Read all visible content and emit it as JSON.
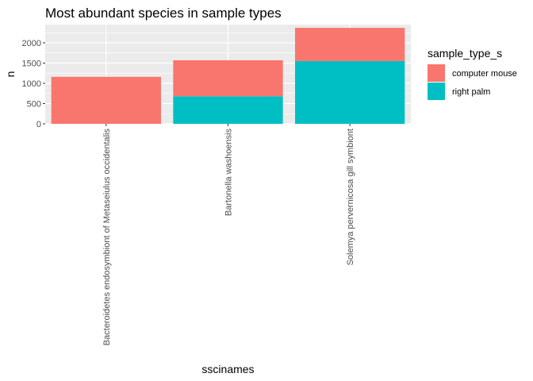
{
  "chart_data": {
    "type": "bar",
    "stacked": true,
    "title": "Most abundant species in sample types",
    "xlabel": "sscinames",
    "ylabel": "n",
    "categories": [
      "Bacteroidetes endosymbiont of Metaseiulus occidentalis",
      "Bartonella washoensis",
      "Solemya pervernicosa gill symbiont"
    ],
    "series": [
      {
        "name": "computer mouse",
        "color": "#F8766D",
        "values": [
          1160,
          890,
          820
        ]
      },
      {
        "name": "right palm",
        "color": "#00BFC4",
        "values": [
          0,
          680,
          1550
        ]
      }
    ],
    "ylim": [
      0,
      2450
    ],
    "yticks": [
      0,
      500,
      1000,
      1500,
      2000
    ],
    "grid": true,
    "legend": {
      "title": "sample_type_s",
      "position": "right"
    }
  }
}
